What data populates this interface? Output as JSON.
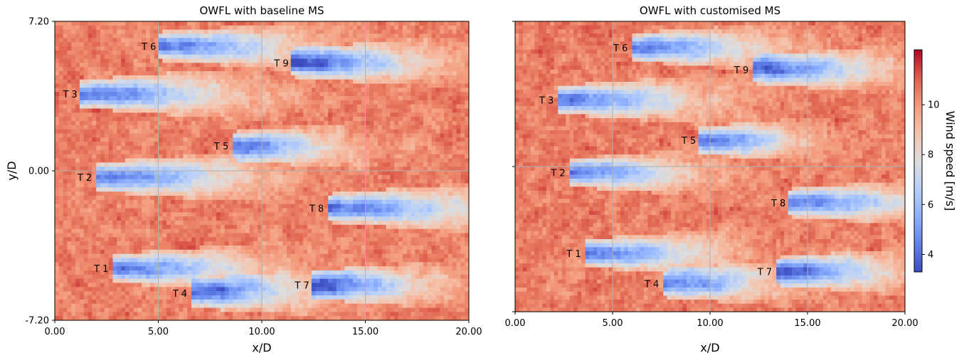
{
  "chart_data": [
    {
      "type": "heatmap",
      "title": "OWFL with baseline MS",
      "xlabel": "x/D",
      "ylabel": "y/D",
      "xlim": [
        0,
        20
      ],
      "ylim": [
        -7.2,
        7.2
      ],
      "xticks": [
        0,
        5,
        10,
        15,
        20
      ],
      "xtick_labels": [
        "0.00",
        "5.00",
        "10.00",
        "15.00",
        "20.00"
      ],
      "yticks": [
        7.2,
        0,
        -7.2
      ],
      "ytick_labels": [
        "7.20",
        "0.00",
        "-7.20"
      ],
      "grid": true,
      "ambient_wind_speed": 10.5,
      "turbines": [
        {
          "label": "T 1",
          "x": 2.8,
          "y": -4.7,
          "wake_length": 6.0
        },
        {
          "label": "T 2",
          "x": 2.0,
          "y": -0.3,
          "wake_length": 6.5
        },
        {
          "label": "T 3",
          "x": 1.3,
          "y": 3.7,
          "wake_length": 6.5
        },
        {
          "label": "T 4",
          "x": 6.6,
          "y": -5.9,
          "wake_length": 5.0
        },
        {
          "label": "T 5",
          "x": 8.6,
          "y": 1.2,
          "wake_length": 4.5
        },
        {
          "label": "T 6",
          "x": 5.1,
          "y": 6.0,
          "wake_length": 6.0
        },
        {
          "label": "T 7",
          "x": 12.5,
          "y": -5.5,
          "wake_length": 5.0
        },
        {
          "label": "T 8",
          "x": 13.2,
          "y": -1.8,
          "wake_length": 6.8
        },
        {
          "label": "T 9",
          "x": 11.5,
          "y": 5.2,
          "wake_length": 6.0
        }
      ]
    },
    {
      "type": "heatmap",
      "title": "OWFL with customised MS",
      "xlabel": "x/D",
      "ylabel": "",
      "xlim": [
        0,
        20
      ],
      "ylim": [
        -7.2,
        7.2
      ],
      "xticks": [
        0,
        5,
        10,
        15,
        20
      ],
      "xtick_labels": [
        "0.00",
        "5.00",
        "10.00",
        "15.00",
        "20.00"
      ],
      "yticks": [
        7.2,
        0,
        -7.2
      ],
      "ytick_labels": [
        "",
        "",
        ""
      ],
      "grid": true,
      "ambient_wind_speed": 10.5,
      "turbines": [
        {
          "label": "T 1",
          "x": 3.6,
          "y": -4.3,
          "wake_length": 6.0
        },
        {
          "label": "T 2",
          "x": 2.8,
          "y": -0.3,
          "wake_length": 5.5
        },
        {
          "label": "T 3",
          "x": 2.2,
          "y": 3.3,
          "wake_length": 6.5
        },
        {
          "label": "T 4",
          "x": 7.6,
          "y": -5.8,
          "wake_length": 5.0
        },
        {
          "label": "T 5",
          "x": 9.5,
          "y": 1.3,
          "wake_length": 4.5
        },
        {
          "label": "T 6",
          "x": 6.0,
          "y": 5.9,
          "wake_length": 6.0
        },
        {
          "label": "T 7",
          "x": 13.4,
          "y": -5.2,
          "wake_length": 5.5
        },
        {
          "label": "T 8",
          "x": 14.1,
          "y": -1.8,
          "wake_length": 5.9
        },
        {
          "label": "T 9",
          "x": 12.2,
          "y": 4.8,
          "wake_length": 6.0
        }
      ]
    }
  ],
  "colorbar": {
    "label": "Wind speed [m/s]",
    "colormap": "coolwarm",
    "vmin": 3.3,
    "vmax": 12.2,
    "ticks": [
      4,
      6,
      8,
      10
    ],
    "tick_labels": [
      "4",
      "6",
      "8",
      "10"
    ]
  },
  "colors": {
    "low": "#3b4cc0",
    "mid": "#dddddd",
    "high": "#b40426",
    "grid": "#b0b0b0"
  }
}
